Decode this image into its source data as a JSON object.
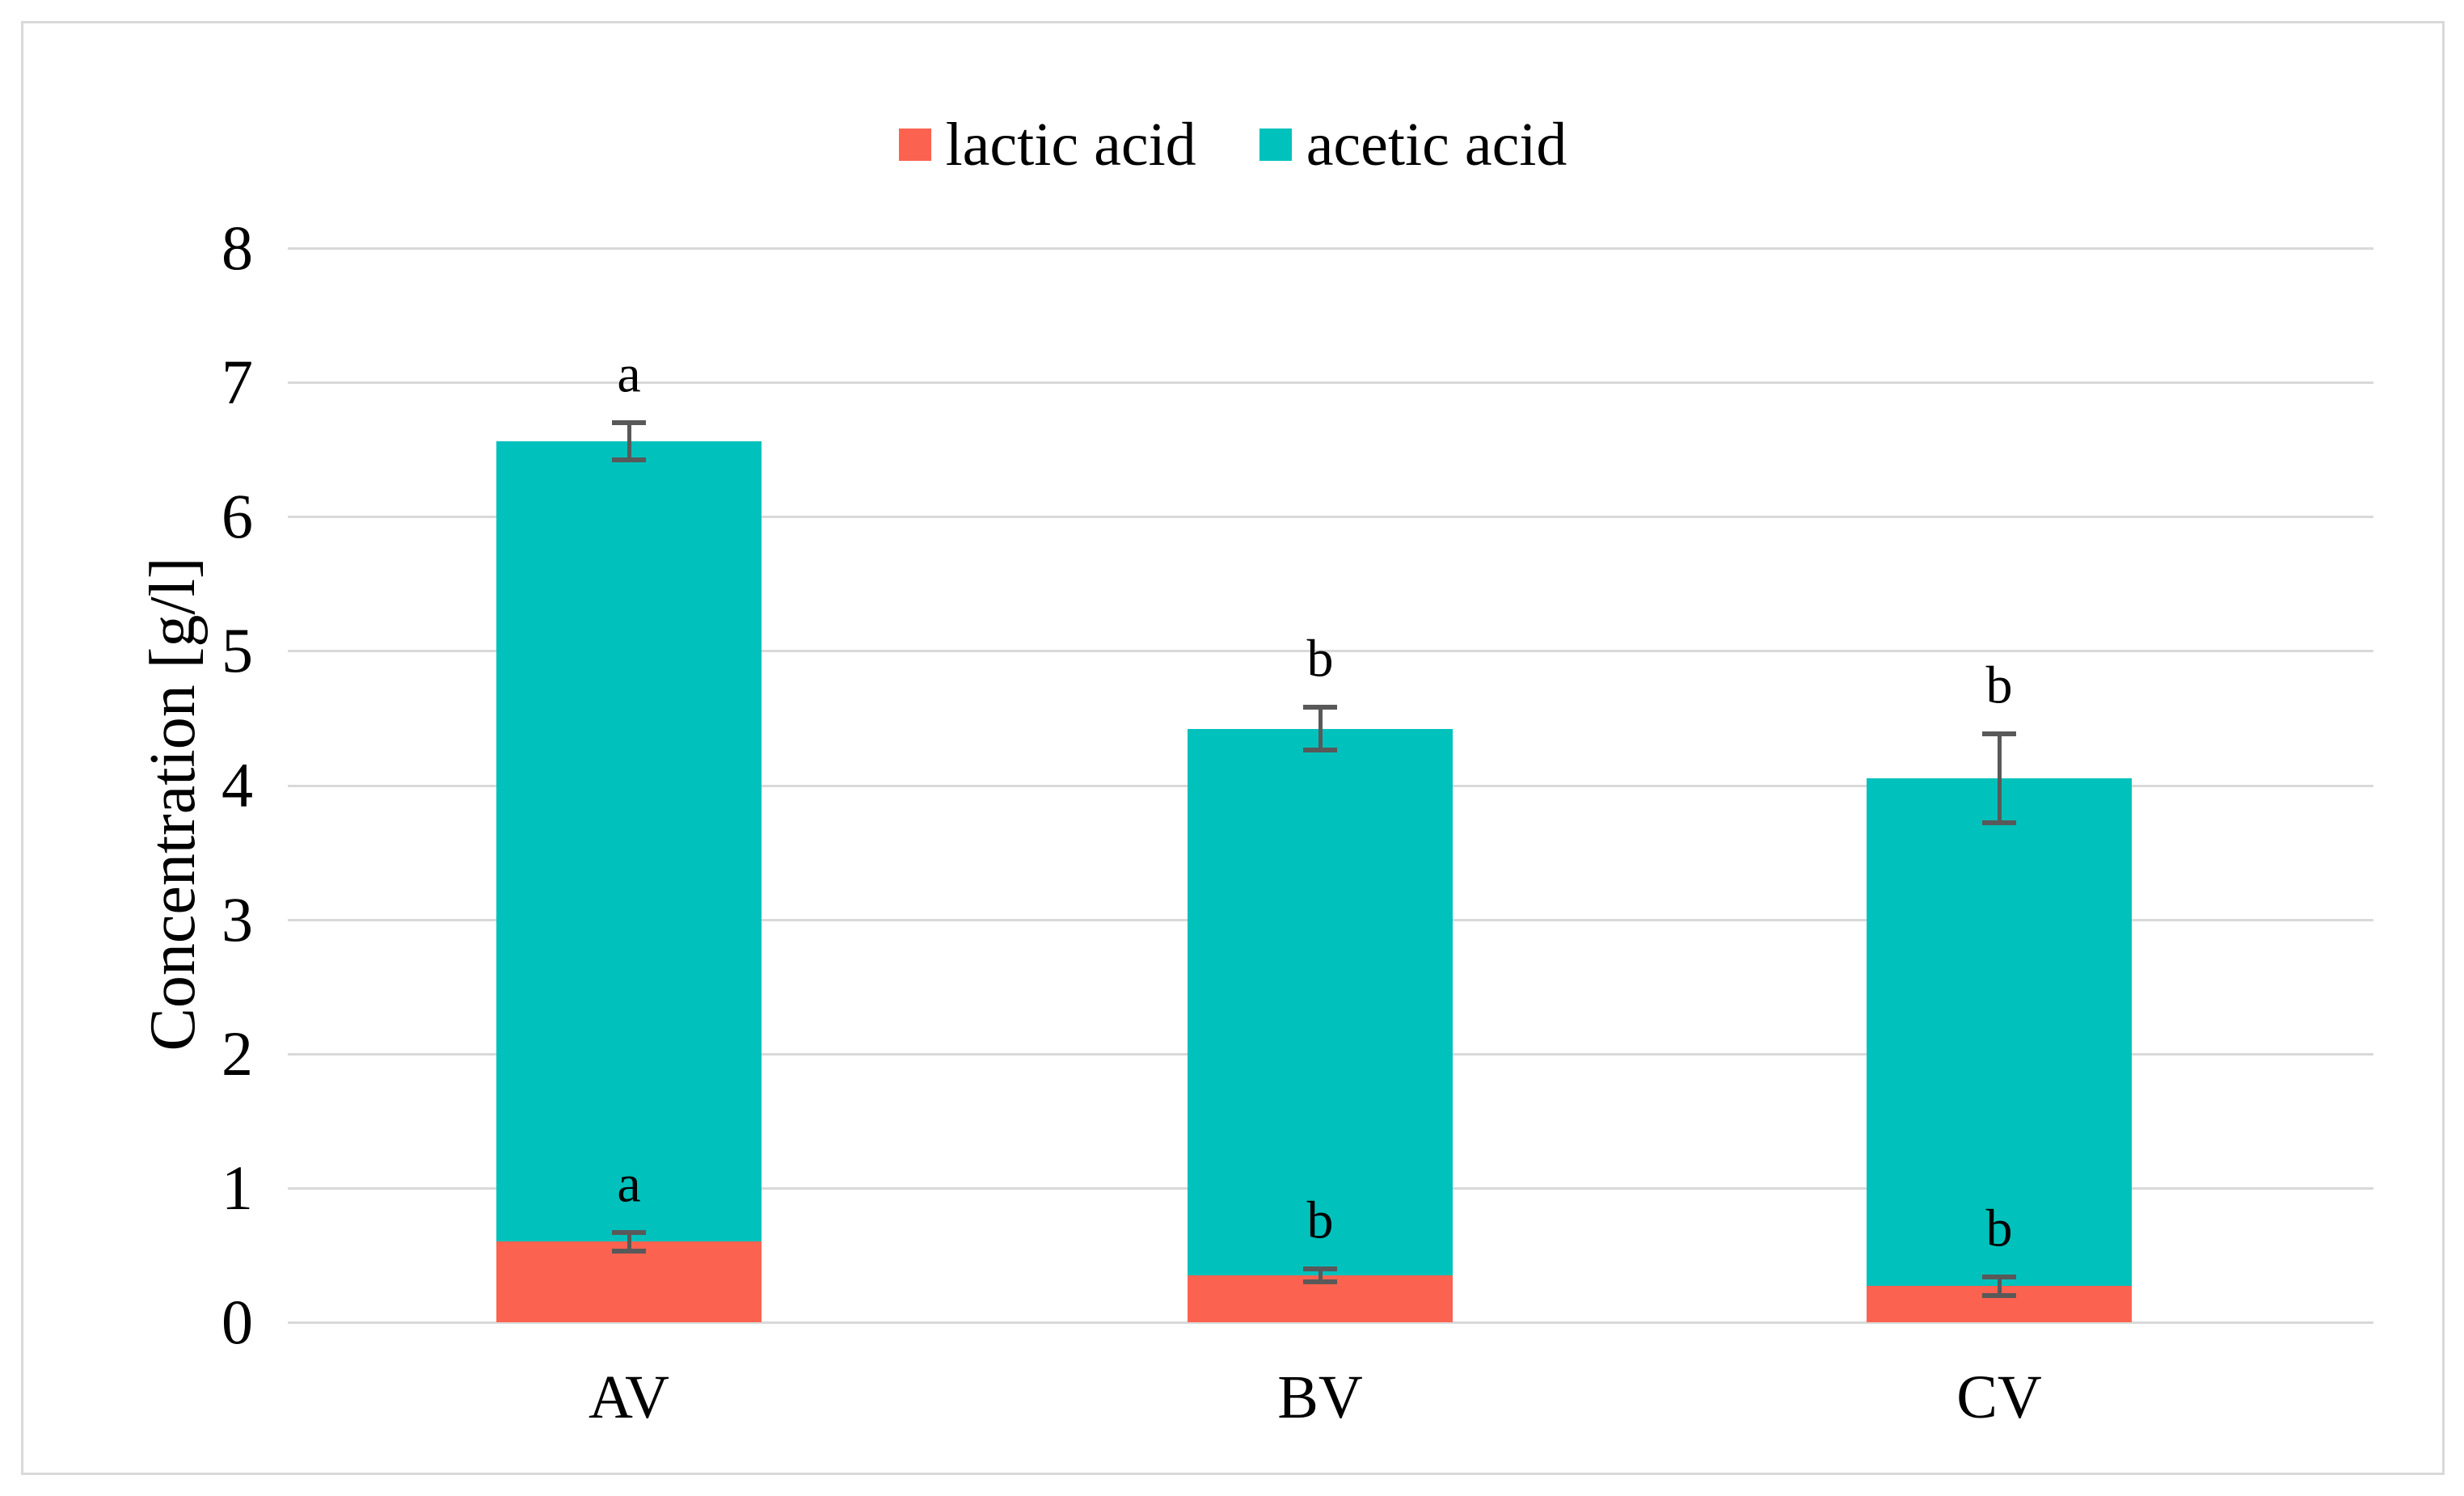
{
  "figure": {
    "background": "#ffffff",
    "frame_color": "#d9d9d9"
  },
  "legend": {
    "position": "top-center",
    "items": [
      {
        "label": "lactic acid",
        "color": "#fb6350"
      },
      {
        "label": "acetic acid",
        "color": "#00c1bc"
      }
    ]
  },
  "chart_data": {
    "type": "bar",
    "stacked": true,
    "title": "",
    "xlabel": "",
    "ylabel": "Concentration [g/l]",
    "categories": [
      "AV",
      "BV",
      "CV"
    ],
    "series": [
      {
        "name": "lactic acid",
        "color": "#fb6350",
        "values": [
          0.6,
          0.35,
          0.27
        ],
        "error": [
          0.07,
          0.05,
          0.07
        ],
        "sig_letters": [
          "a",
          "b",
          "b"
        ]
      },
      {
        "name": "acetic acid",
        "color": "#00c1bc",
        "values": [
          5.96,
          4.07,
          3.78
        ],
        "error_on_stack_total": [
          0.14,
          0.16,
          0.33
        ],
        "sig_letters": [
          "a",
          "b",
          "b"
        ]
      }
    ],
    "stack_totals": [
      6.56,
      4.42,
      4.05
    ],
    "ylim": [
      0,
      8
    ],
    "yticks": [
      0,
      1,
      2,
      3,
      4,
      5,
      6,
      7,
      8
    ],
    "grid": "horizontal",
    "gridline_color": "#d9d9d9",
    "error_bar_color": "#595959",
    "legend_position": "top"
  }
}
